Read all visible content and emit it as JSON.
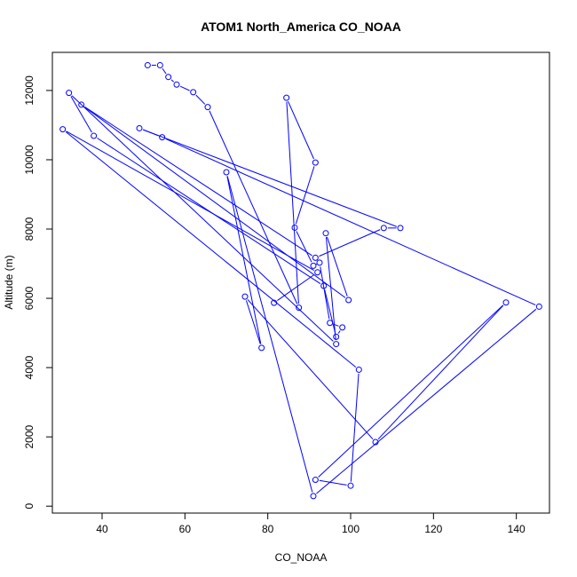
{
  "chart_data": {
    "type": "line",
    "title": "ATOM1 North_America CO_NOAA",
    "xlabel": "CO_NOAA",
    "ylabel": "Altitude (m)",
    "xlim": [
      28,
      148
    ],
    "ylim": [
      -200,
      13100
    ],
    "xticks": [
      40,
      60,
      80,
      100,
      120,
      140
    ],
    "yticks": [
      0,
      2000,
      4000,
      6000,
      8000,
      10000,
      12000
    ],
    "grid": false,
    "legend": "none",
    "series_color": "#0000ff",
    "marker": "open-circle",
    "series": [
      {
        "x": [
          51,
          54,
          56,
          58,
          62,
          65.5,
          87.5,
          84.5,
          91.5,
          86.5,
          91,
          92.5,
          95,
          98,
          96.5,
          93.5,
          38,
          32,
          96.5,
          94,
          99.5,
          35,
          91.5,
          108,
          112,
          49,
          54.5,
          145.5,
          91,
          70,
          78.5,
          74.5,
          106,
          137.5,
          91.5,
          100,
          102,
          30.5,
          92,
          81.5
        ],
        "y": [
          12730,
          12730,
          12390,
          12170,
          11950,
          11520,
          5730,
          11790,
          9920,
          8040,
          6940,
          7030,
          5290,
          5160,
          4890,
          6360,
          10690,
          11930,
          4680,
          7880,
          5950,
          11590,
          7170,
          8030,
          8030,
          10910,
          10650,
          5760,
          290,
          9640,
          4570,
          6050,
          1850,
          5880,
          760,
          590,
          3940,
          10880,
          6750,
          5870
        ]
      }
    ]
  }
}
